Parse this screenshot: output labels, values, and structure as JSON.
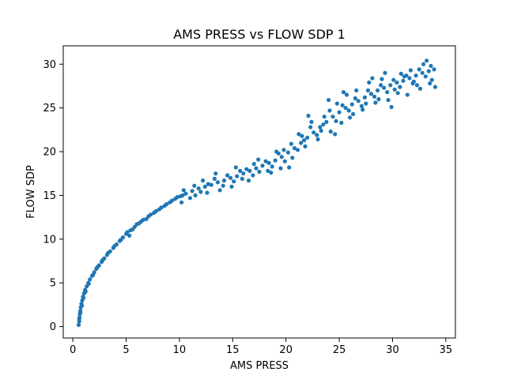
{
  "chart_data": {
    "type": "scatter",
    "title": "AMS PRESS vs FLOW SDP 1",
    "xlabel": "AMS PRESS",
    "ylabel": "FLOW SDP",
    "xlim": [
      -0.9,
      35.9
    ],
    "ylim": [
      -1.3,
      32.1
    ],
    "xticks": [
      0,
      5,
      10,
      15,
      20,
      25,
      30,
      35
    ],
    "yticks": [
      0,
      5,
      10,
      15,
      20,
      25,
      30
    ],
    "grid": false,
    "marker_color": "#1f77b4",
    "series": [
      {
        "points": [
          [
            0.55,
            0.2
          ],
          [
            0.6,
            0.6
          ],
          [
            0.62,
            1.0
          ],
          [
            0.65,
            1.4
          ],
          [
            0.7,
            1.8
          ],
          [
            0.75,
            2.2
          ],
          [
            0.8,
            2.6
          ],
          [
            0.88,
            3.0
          ],
          [
            0.95,
            3.4
          ],
          [
            1.05,
            3.8
          ],
          [
            1.15,
            4.2
          ],
          [
            1.3,
            4.6
          ],
          [
            1.45,
            5.0
          ],
          [
            1.6,
            5.4
          ],
          [
            1.8,
            5.8
          ],
          [
            2.0,
            6.2
          ],
          [
            2.2,
            6.6
          ],
          [
            2.45,
            7.0
          ],
          [
            2.7,
            7.4
          ],
          [
            2.95,
            7.8
          ],
          [
            3.2,
            8.2
          ],
          [
            3.5,
            8.6
          ],
          [
            3.8,
            9.0
          ],
          [
            4.1,
            9.4
          ],
          [
            4.4,
            9.8
          ],
          [
            4.7,
            10.2
          ],
          [
            5.0,
            10.6
          ],
          [
            5.4,
            11.0
          ],
          [
            5.8,
            11.4
          ],
          [
            6.2,
            11.8
          ],
          [
            6.6,
            12.2
          ],
          [
            7.1,
            12.6
          ],
          [
            7.6,
            13.0
          ],
          [
            8.1,
            13.4
          ],
          [
            8.6,
            13.8
          ],
          [
            9.1,
            14.2
          ],
          [
            9.6,
            14.6
          ],
          [
            10.1,
            14.9
          ],
          [
            10.6,
            15.2
          ],
          [
            11.2,
            15.5
          ],
          [
            11.8,
            15.8
          ],
          [
            12.4,
            16.0
          ],
          [
            13.0,
            16.2
          ],
          [
            13.6,
            16.5
          ],
          [
            14.2,
            16.7
          ],
          [
            14.8,
            17.0
          ],
          [
            15.4,
            17.2
          ],
          [
            16.0,
            17.5
          ],
          [
            16.6,
            17.8
          ],
          [
            17.2,
            18.1
          ],
          [
            17.8,
            18.4
          ],
          [
            18.4,
            18.7
          ],
          [
            19.0,
            19.0
          ],
          [
            19.6,
            19.4
          ],
          [
            20.2,
            19.9
          ],
          [
            20.8,
            20.4
          ],
          [
            21.4,
            21.0
          ],
          [
            22.0,
            21.6
          ],
          [
            22.6,
            22.2
          ],
          [
            23.2,
            22.8
          ],
          [
            23.8,
            23.4
          ],
          [
            24.4,
            24.0
          ],
          [
            25.0,
            24.5
          ],
          [
            25.6,
            25.0
          ],
          [
            26.2,
            25.4
          ],
          [
            26.8,
            25.8
          ],
          [
            27.4,
            26.2
          ],
          [
            28.0,
            26.6
          ],
          [
            28.6,
            27.0
          ],
          [
            29.2,
            27.3
          ],
          [
            29.8,
            27.6
          ],
          [
            30.4,
            27.9
          ],
          [
            31.0,
            28.1
          ],
          [
            31.6,
            28.4
          ],
          [
            32.2,
            28.7
          ],
          [
            32.8,
            29.0
          ],
          [
            33.4,
            29.2
          ],
          [
            33.9,
            29.4
          ],
          [
            0.6,
            0.9
          ],
          [
            0.7,
            1.6
          ],
          [
            0.85,
            2.4
          ],
          [
            1.0,
            3.3
          ],
          [
            1.2,
            4.0
          ],
          [
            1.5,
            4.9
          ],
          [
            1.9,
            5.9
          ],
          [
            2.3,
            6.8
          ],
          [
            2.8,
            7.6
          ],
          [
            3.3,
            8.4
          ],
          [
            3.9,
            9.2
          ],
          [
            4.5,
            9.9
          ],
          [
            5.1,
            10.8
          ],
          [
            5.6,
            11.1
          ],
          [
            6.4,
            12.0
          ],
          [
            7.3,
            12.8
          ],
          [
            8.3,
            13.6
          ],
          [
            9.3,
            14.4
          ],
          [
            10.3,
            15.0
          ],
          [
            11.0,
            14.7
          ],
          [
            12.0,
            15.4
          ],
          [
            12.7,
            16.3
          ],
          [
            13.3,
            16.9
          ],
          [
            14.5,
            17.3
          ],
          [
            15.1,
            16.6
          ],
          [
            15.7,
            17.8
          ],
          [
            16.3,
            18.0
          ],
          [
            16.9,
            17.3
          ],
          [
            17.5,
            17.7
          ],
          [
            18.1,
            18.9
          ],
          [
            18.7,
            18.3
          ],
          [
            19.3,
            19.8
          ],
          [
            19.9,
            18.9
          ],
          [
            20.5,
            20.9
          ],
          [
            21.1,
            20.2
          ],
          [
            21.7,
            21.3
          ],
          [
            22.3,
            22.8
          ],
          [
            22.9,
            21.9
          ],
          [
            23.5,
            23.1
          ],
          [
            24.1,
            24.7
          ],
          [
            24.7,
            23.5
          ],
          [
            25.3,
            25.3
          ],
          [
            25.9,
            24.7
          ],
          [
            26.5,
            26.1
          ],
          [
            27.1,
            25.2
          ],
          [
            27.7,
            27.0
          ],
          [
            28.3,
            26.3
          ],
          [
            28.9,
            27.6
          ],
          [
            29.5,
            26.8
          ],
          [
            30.1,
            28.2
          ],
          [
            30.7,
            27.4
          ],
          [
            31.3,
            28.7
          ],
          [
            31.9,
            27.8
          ],
          [
            32.5,
            29.4
          ],
          [
            33.1,
            28.6
          ],
          [
            33.6,
            29.8
          ],
          [
            10.2,
            14.2
          ],
          [
            10.4,
            15.6
          ],
          [
            11.5,
            15.0
          ],
          [
            12.2,
            16.7
          ],
          [
            13.8,
            15.6
          ],
          [
            14.9,
            16.0
          ],
          [
            15.3,
            18.2
          ],
          [
            16.5,
            16.7
          ],
          [
            17.0,
            18.6
          ],
          [
            18.3,
            17.8
          ],
          [
            19.1,
            20.0
          ],
          [
            19.5,
            18.1
          ],
          [
            20.6,
            19.3
          ],
          [
            21.2,
            22.0
          ],
          [
            21.8,
            20.6
          ],
          [
            22.4,
            23.4
          ],
          [
            23.0,
            21.4
          ],
          [
            23.6,
            24.0
          ],
          [
            24.2,
            22.3
          ],
          [
            24.8,
            25.5
          ],
          [
            25.4,
            26.8
          ],
          [
            26.0,
            23.9
          ],
          [
            26.6,
            27.0
          ],
          [
            27.2,
            24.8
          ],
          [
            27.8,
            27.9
          ],
          [
            28.4,
            25.6
          ],
          [
            29.0,
            28.3
          ],
          [
            29.6,
            25.9
          ],
          [
            30.2,
            27.1
          ],
          [
            30.8,
            28.9
          ],
          [
            31.4,
            26.5
          ],
          [
            32.0,
            28.0
          ],
          [
            32.6,
            27.2
          ],
          [
            33.2,
            30.4
          ],
          [
            33.7,
            28.2
          ],
          [
            34.0,
            27.4
          ],
          [
            5.3,
            10.4
          ],
          [
            6.0,
            11.7
          ],
          [
            6.9,
            12.3
          ],
          [
            7.8,
            13.2
          ],
          [
            8.8,
            14.0
          ],
          [
            9.8,
            14.8
          ],
          [
            11.4,
            16.1
          ],
          [
            12.6,
            15.3
          ],
          [
            13.4,
            17.5
          ],
          [
            14.1,
            16.1
          ],
          [
            15.9,
            16.9
          ],
          [
            17.4,
            19.1
          ],
          [
            18.6,
            17.6
          ],
          [
            19.8,
            20.2
          ],
          [
            20.3,
            18.2
          ],
          [
            21.5,
            21.8
          ],
          [
            22.1,
            24.1
          ],
          [
            23.3,
            22.4
          ],
          [
            24.0,
            25.9
          ],
          [
            24.6,
            22.0
          ],
          [
            25.2,
            23.3
          ],
          [
            25.7,
            26.5
          ],
          [
            26.3,
            24.3
          ],
          [
            27.5,
            25.5
          ],
          [
            28.1,
            28.4
          ],
          [
            28.7,
            26.0
          ],
          [
            29.3,
            29.0
          ],
          [
            29.9,
            25.1
          ],
          [
            30.5,
            26.7
          ],
          [
            31.1,
            28.6
          ],
          [
            31.7,
            29.3
          ],
          [
            32.3,
            27.6
          ],
          [
            32.9,
            30.0
          ],
          [
            33.5,
            27.8
          ]
        ]
      }
    ]
  }
}
